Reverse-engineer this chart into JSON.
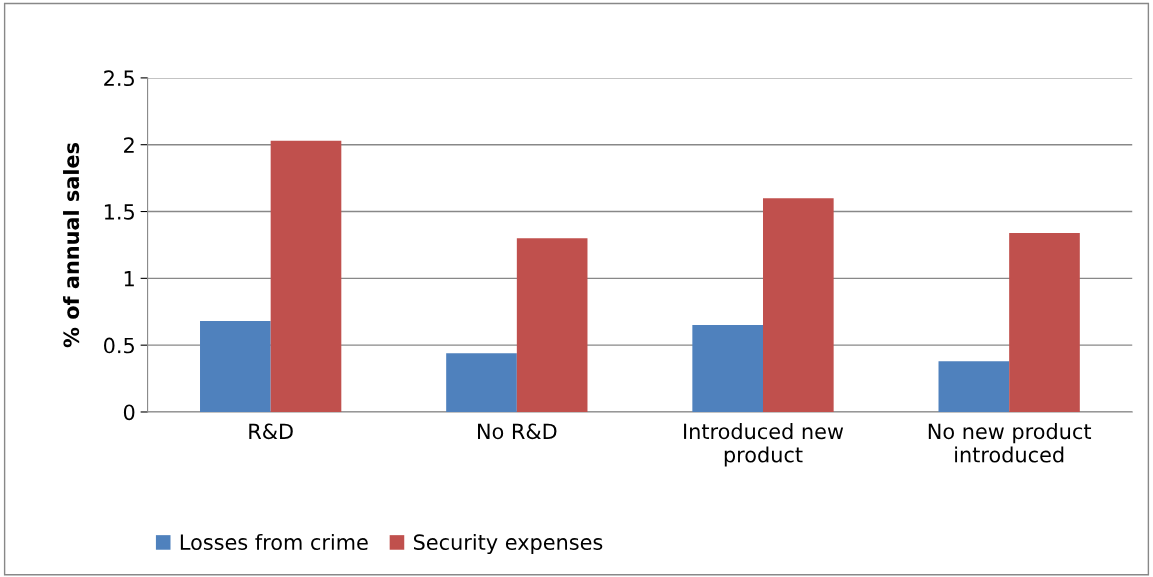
{
  "chart_data": {
    "type": "bar",
    "ylabel": "% of annual sales",
    "categories": [
      "R&D",
      "No R&D",
      "Introduced new\nproduct",
      "No new product\nintroduced"
    ],
    "series": [
      {
        "name": "Losses from crime",
        "color": "#4f81bd",
        "values": [
          0.68,
          0.44,
          0.65,
          0.38
        ]
      },
      {
        "name": "Security expenses",
        "color": "#c0504d",
        "values": [
          2.03,
          1.3,
          1.6,
          1.34
        ]
      }
    ],
    "ylim": [
      0,
      2.5
    ],
    "yticks": [
      0,
      0.5,
      1,
      1.5,
      2,
      2.5
    ],
    "grid": "y",
    "legend": "bottom left"
  }
}
